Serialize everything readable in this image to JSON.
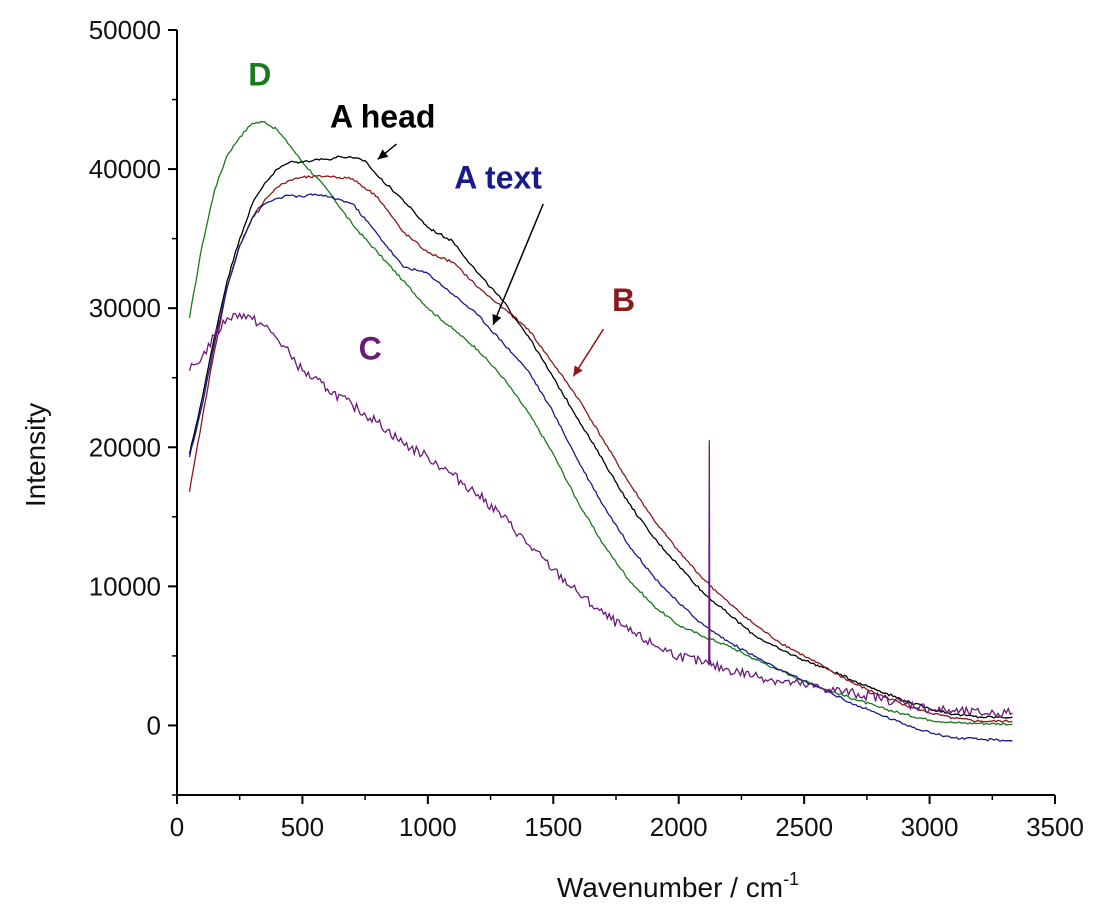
{
  "chart_data": {
    "type": "line",
    "title": "",
    "xlabel": "Wavenumber / cm",
    "xlabel_superscript": "-1",
    "ylabel": "Intensity",
    "xlim": [
      0,
      3500
    ],
    "ylim": [
      -5000,
      50000
    ],
    "xticks": [
      "0",
      "500",
      "1000",
      "1500",
      "2000",
      "2500",
      "3000",
      "3500"
    ],
    "yticks": [
      "0",
      "10000",
      "20000",
      "30000",
      "40000",
      "50000"
    ],
    "grid": false,
    "legend": "none",
    "series": [
      {
        "name": "D",
        "color": "#1b7a1b",
        "x": [
          50,
          100,
          150,
          200,
          250,
          300,
          350,
          400,
          450,
          500,
          600,
          700,
          800,
          900,
          1000,
          1100,
          1200,
          1300,
          1400,
          1500,
          1600,
          1700,
          1800,
          1900,
          2000,
          2100,
          2200,
          2300,
          2400,
          2500,
          2600,
          2700,
          2800,
          2900,
          3000,
          3100,
          3200,
          3330
        ],
        "y": [
          29300,
          34500,
          38500,
          41000,
          42300,
          43300,
          43400,
          42800,
          41700,
          40500,
          38500,
          36000,
          34000,
          32000,
          30000,
          28500,
          27000,
          25000,
          22500,
          19500,
          16000,
          13000,
          10500,
          8600,
          7200,
          6400,
          5700,
          4800,
          4000,
          3200,
          2500,
          1900,
          1300,
          800,
          400,
          200,
          150,
          100
        ]
      },
      {
        "name": "A head",
        "color": "#000000",
        "x": [
          50,
          100,
          150,
          200,
          250,
          300,
          350,
          400,
          450,
          500,
          550,
          600,
          650,
          700,
          750,
          800,
          900,
          1000,
          1100,
          1200,
          1300,
          1400,
          1500,
          1600,
          1700,
          1800,
          1900,
          2000,
          2100,
          2200,
          2300,
          2400,
          2500,
          2600,
          2700,
          2800,
          2900,
          3000,
          3100,
          3200,
          3330
        ],
        "y": [
          19500,
          23500,
          28000,
          32000,
          35000,
          37500,
          39000,
          40000,
          40500,
          40500,
          40700,
          40700,
          40900,
          40800,
          40600,
          39500,
          37800,
          35800,
          34800,
          32500,
          30500,
          28000,
          25000,
          22000,
          19000,
          16000,
          13500,
          11500,
          9500,
          8000,
          6500,
          5500,
          4700,
          4000,
          3200,
          2500,
          1800,
          1200,
          800,
          600,
          600
        ]
      },
      {
        "name": "B",
        "color": "#8b1a1a",
        "x": [
          50,
          100,
          150,
          200,
          250,
          300,
          350,
          400,
          450,
          500,
          600,
          700,
          800,
          900,
          1000,
          1100,
          1200,
          1300,
          1400,
          1500,
          1600,
          1700,
          1800,
          1900,
          2000,
          2100,
          2200,
          2300,
          2400,
          2500,
          2600,
          2700,
          2800,
          2900,
          3000,
          3100,
          3200,
          3330
        ],
        "y": [
          16800,
          22000,
          27000,
          31500,
          34500,
          36500,
          37800,
          38700,
          39200,
          39400,
          39500,
          39300,
          38000,
          35500,
          34000,
          33300,
          31500,
          30000,
          28500,
          26000,
          23500,
          20500,
          17500,
          14800,
          12500,
          10500,
          8800,
          7300,
          6000,
          5000,
          4000,
          3000,
          2200,
          1500,
          900,
          500,
          300,
          300
        ]
      },
      {
        "name": "A text",
        "color": "#1a1a8c",
        "x": [
          50,
          100,
          150,
          200,
          250,
          300,
          350,
          400,
          450,
          500,
          550,
          600,
          650,
          700,
          800,
          900,
          1000,
          1100,
          1200,
          1300,
          1400,
          1500,
          1600,
          1700,
          1800,
          1900,
          2000,
          2100,
          2200,
          2300,
          2400,
          2500,
          2600,
          2700,
          2800,
          2900,
          3000,
          3100,
          3200,
          3330
        ],
        "y": [
          19300,
          23000,
          27500,
          31500,
          34500,
          36500,
          37500,
          37900,
          38100,
          38000,
          38200,
          38000,
          37800,
          37500,
          35300,
          33000,
          32500,
          31000,
          29500,
          27500,
          25500,
          22500,
          19000,
          15800,
          13000,
          10700,
          8800,
          7200,
          6000,
          5000,
          4000,
          3200,
          2400,
          1500,
          800,
          100,
          -500,
          -900,
          -1000,
          -1100
        ]
      },
      {
        "name": "C",
        "color": "#6a1a78",
        "x": [
          50,
          100,
          150,
          200,
          250,
          300,
          350,
          400,
          450,
          500,
          600,
          700,
          800,
          900,
          1000,
          1100,
          1200,
          1300,
          1400,
          1500,
          1600,
          1700,
          1800,
          1900,
          2000,
          2100,
          2120,
          2122,
          2124,
          2130,
          2200,
          2300,
          2400,
          2500,
          2600,
          2700,
          2800,
          2900,
          3000,
          3100,
          3200,
          3330
        ],
        "y": [
          25500,
          26500,
          28000,
          29300,
          29600,
          29200,
          28700,
          27800,
          26700,
          25500,
          24200,
          23000,
          21800,
          20300,
          19300,
          18000,
          16600,
          15000,
          13000,
          11200,
          9500,
          8000,
          6800,
          5800,
          5000,
          4500,
          4400,
          20500,
          4400,
          4300,
          4000,
          3600,
          3200,
          2900,
          2600,
          2300,
          2000,
          1600,
          1200,
          1000,
          900,
          900
        ]
      }
    ],
    "annotations": [
      {
        "text": "D",
        "color": "#1b7a1b",
        "x": 330,
        "y": 46000
      },
      {
        "text": "A head",
        "color": "#000000",
        "x": 820,
        "y": 43000
      },
      {
        "text": "A text",
        "color": "#1a1a8c",
        "x": 1280,
        "y": 38600
      },
      {
        "text": "B",
        "color": "#8b1a1a",
        "x": 1780,
        "y": 29800
      },
      {
        "text": "C",
        "color": "#6a1a78",
        "x": 770,
        "y": 26300
      }
    ],
    "arrows": [
      {
        "color": "#000000",
        "from": [
          875,
          41800
        ],
        "to": [
          800,
          40700
        ]
      },
      {
        "color": "#000000",
        "from": [
          1460,
          37500
        ],
        "to": [
          1260,
          28800
        ]
      },
      {
        "color": "#8b1a1a",
        "from": [
          1700,
          28500
        ],
        "to": [
          1580,
          25100
        ]
      }
    ]
  }
}
